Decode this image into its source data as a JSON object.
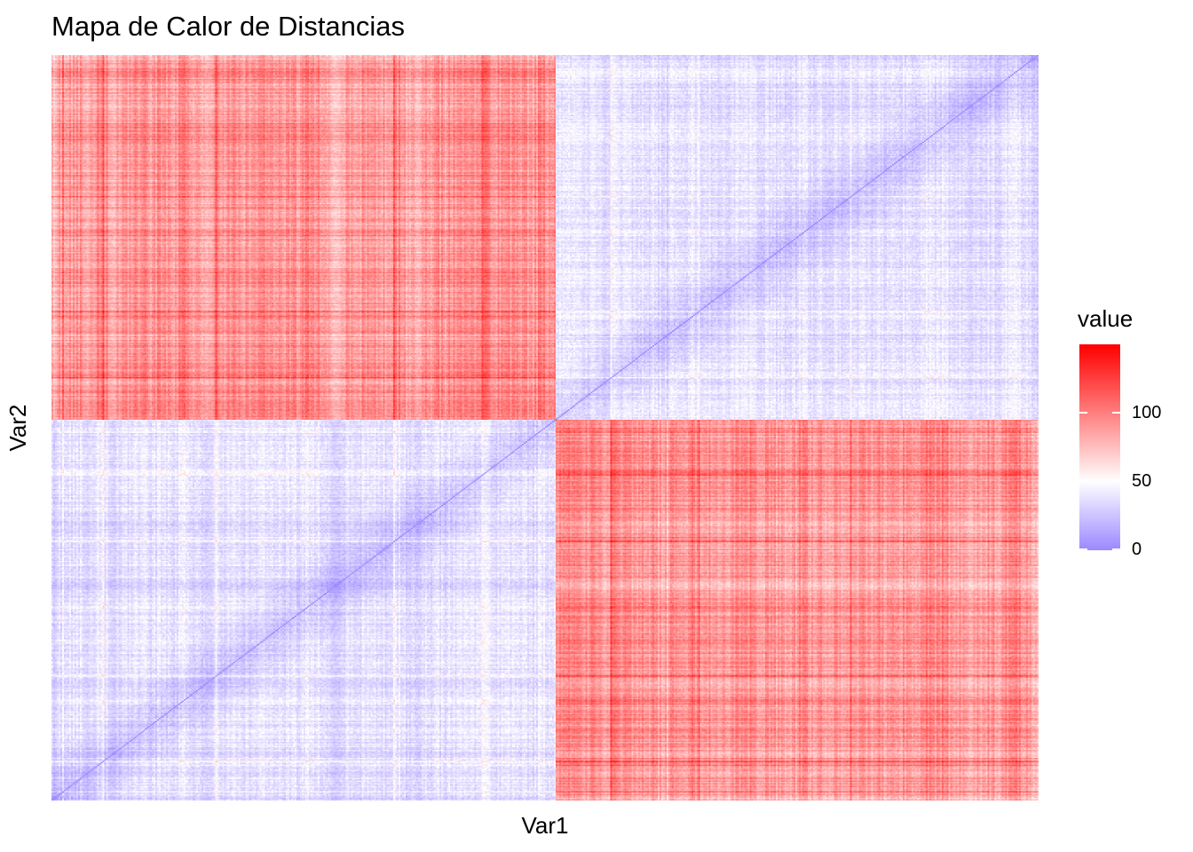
{
  "chart_data": {
    "type": "heatmap",
    "title": "Mapa de Calor de Distancias",
    "xlabel": "Var1",
    "ylabel": "Var2",
    "x_tick_labels": [],
    "y_tick_labels": [],
    "matrix_shape": "symmetric distance matrix, ~560 x 560 cells",
    "diagonal_value": 0,
    "block_structure": {
      "boundary_fraction": 0.51,
      "within_block_mean": 38,
      "between_block_mean": 92,
      "between_block_peak": 148
    },
    "color_scale": {
      "title": "value",
      "low": "#9C89FF",
      "mid": "#FFFFFF",
      "high": "#FF0000",
      "midpoint": 50,
      "limits": [
        0,
        150
      ],
      "breaks": [
        0,
        50,
        100
      ],
      "break_labels": [
        "0",
        "50",
        "100"
      ]
    },
    "grid": false,
    "legend_position": "right"
  }
}
